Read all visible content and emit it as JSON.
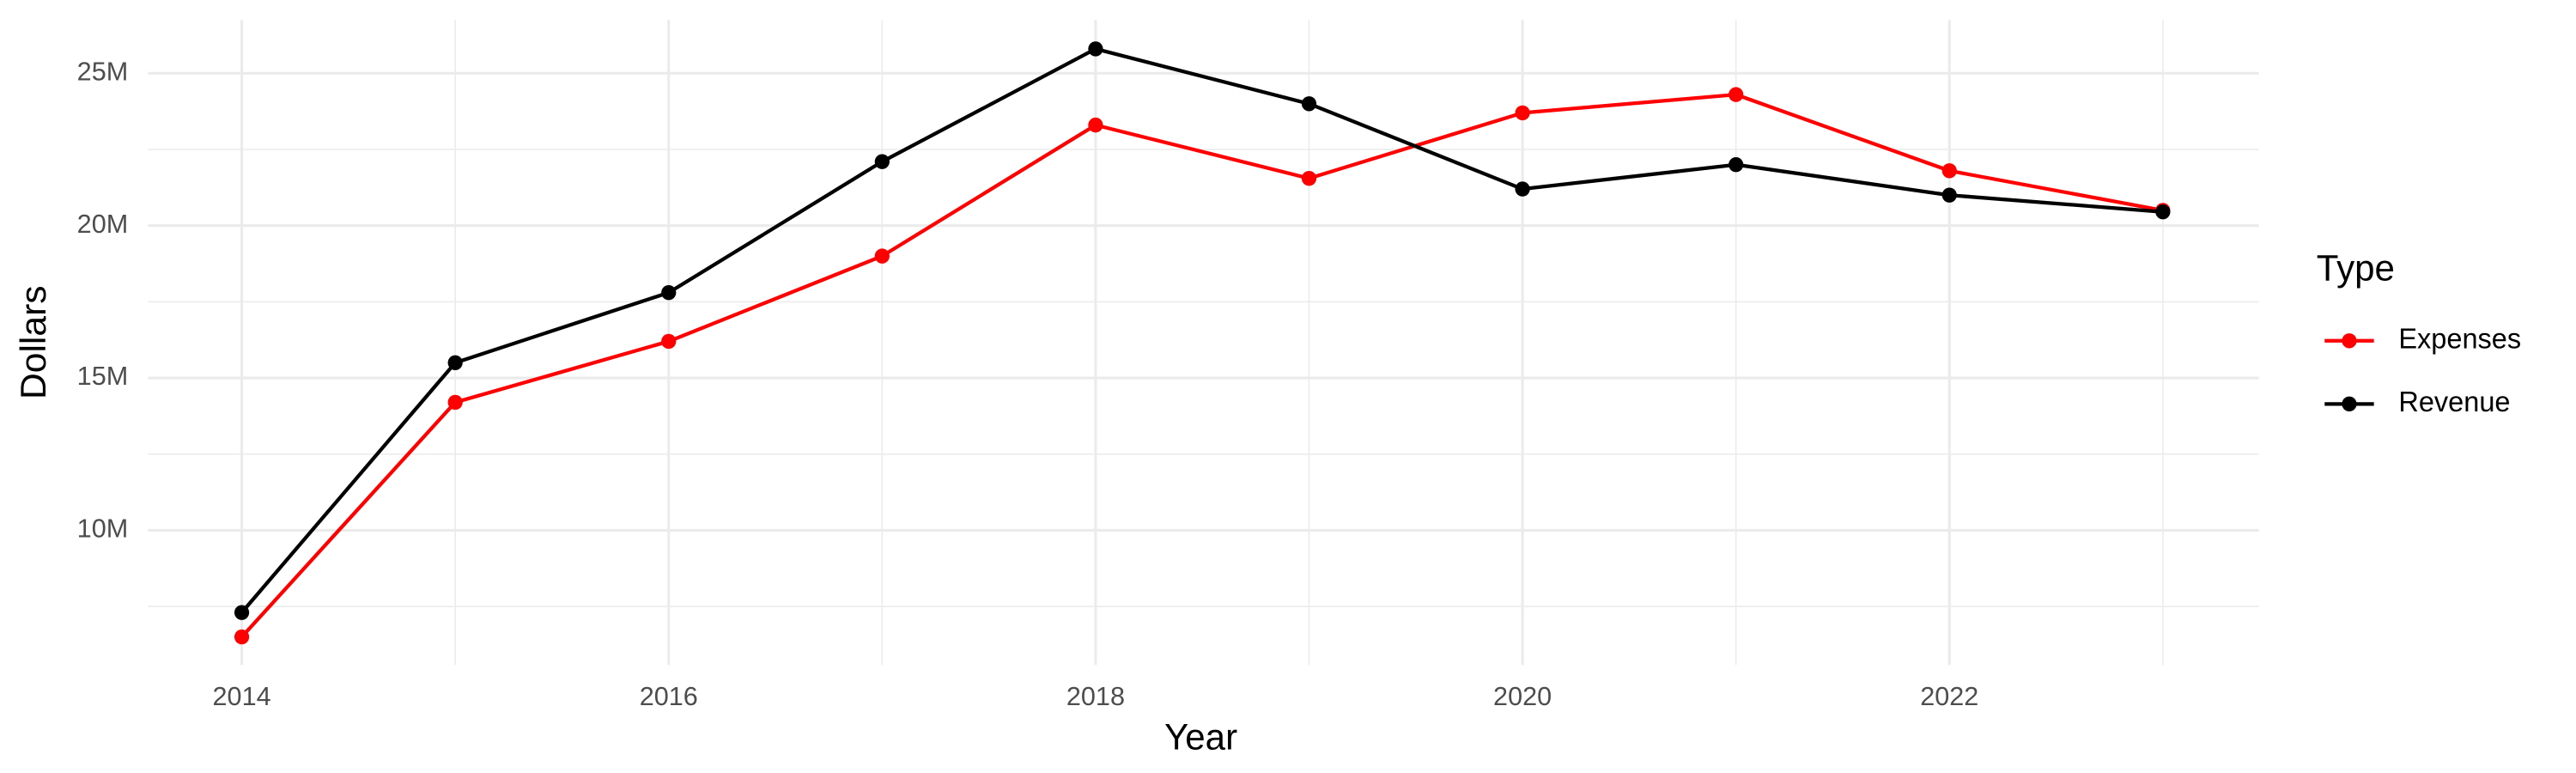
{
  "chart_data": {
    "type": "line",
    "x_label": "Year",
    "y_label": "Dollars",
    "legend_title": "Type",
    "legend_position": "right",
    "grid": true,
    "x": [
      2014,
      2015,
      2016,
      2017,
      2018,
      2019,
      2020,
      2021,
      2022,
      2023
    ],
    "series": [
      {
        "name": "Expenses",
        "color": "#ff0000",
        "values": [
          6500000,
          14200000,
          16200000,
          19000000,
          23300000,
          21550000,
          23700000,
          24300000,
          21800000,
          20500000
        ]
      },
      {
        "name": "Revenue",
        "color": "#000000",
        "values": [
          7300000,
          15500000,
          17800000,
          22100000,
          25800000,
          24000000,
          21200000,
          22000000,
          21000000,
          20450000
        ]
      }
    ],
    "xlim": [
      2013.56,
      2023.45
    ],
    "xticks": [
      2014,
      2016,
      2018,
      2020,
      2022
    ],
    "x_minor_ticks": [
      2015,
      2017,
      2019,
      2021,
      2023
    ],
    "ylim": [
      5580000,
      26750000
    ],
    "yticks": [
      {
        "value": 10000000,
        "label": "10M"
      },
      {
        "value": 15000000,
        "label": "15M"
      },
      {
        "value": 20000000,
        "label": "20M"
      },
      {
        "value": 25000000,
        "label": "25M"
      }
    ],
    "y_minor_ticks": [
      7500000,
      12500000,
      17500000,
      22500000
    ]
  }
}
